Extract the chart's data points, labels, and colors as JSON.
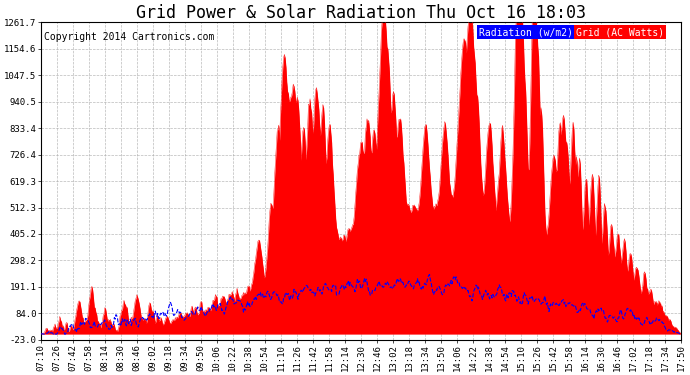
{
  "title": "Grid Power & Solar Radiation Thu Oct 16 18:03",
  "copyright": "Copyright 2014 Cartronics.com",
  "legend_radiation": "Radiation (w/m2)",
  "legend_grid": "Grid (AC Watts)",
  "y_ticks": [
    -23.0,
    84.0,
    191.1,
    298.2,
    405.2,
    512.3,
    619.3,
    726.4,
    833.4,
    940.5,
    1047.5,
    1154.6,
    1261.7
  ],
  "x_tick_labels": [
    "07:10",
    "07:26",
    "07:42",
    "07:58",
    "08:14",
    "08:30",
    "08:46",
    "09:02",
    "09:18",
    "09:34",
    "09:50",
    "10:06",
    "10:22",
    "10:38",
    "10:54",
    "11:10",
    "11:26",
    "11:42",
    "11:58",
    "12:14",
    "12:30",
    "12:46",
    "13:02",
    "13:18",
    "13:34",
    "13:50",
    "14:06",
    "14:22",
    "14:38",
    "14:54",
    "15:10",
    "15:26",
    "15:42",
    "15:58",
    "16:14",
    "16:30",
    "16:46",
    "17:02",
    "17:18",
    "17:34",
    "17:50"
  ],
  "background_color": "#ffffff",
  "plot_bg_color": "#ffffff",
  "grid_color": "#aaaaaa",
  "red_color": "#ff0000",
  "blue_color": "#0000ff",
  "y_min": -23.0,
  "y_max": 1261.7,
  "title_fontsize": 12,
  "copyright_fontsize": 7,
  "legend_fontsize": 7,
  "tick_fontsize": 6.5
}
